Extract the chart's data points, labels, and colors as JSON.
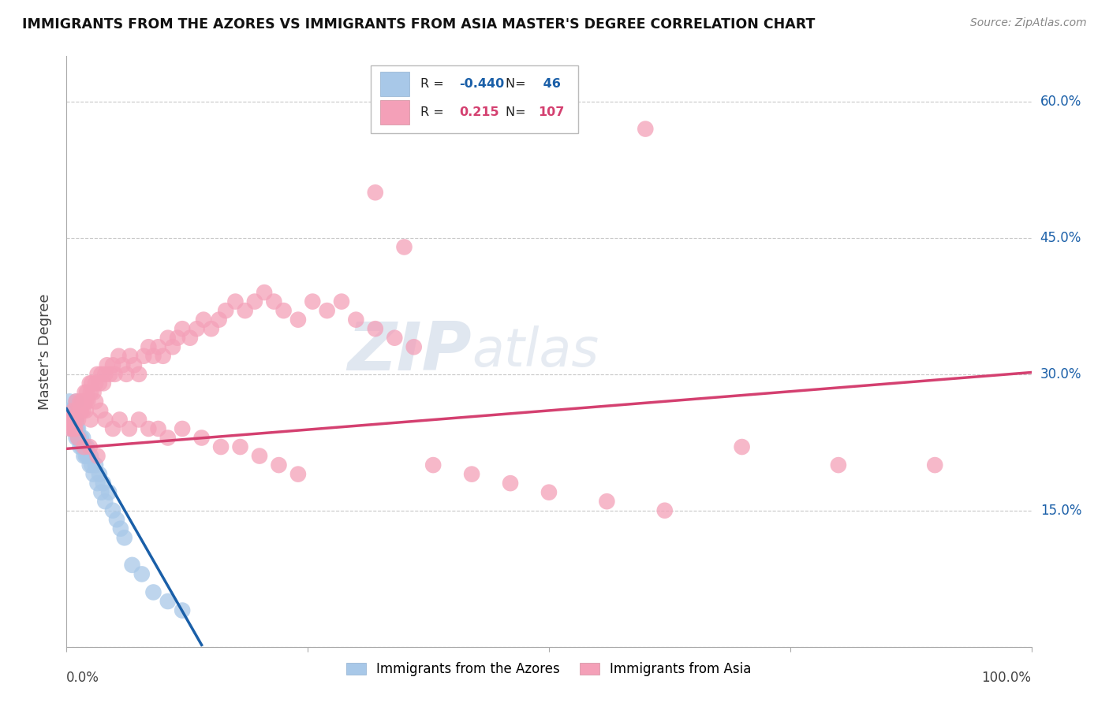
{
  "title": "IMMIGRANTS FROM THE AZORES VS IMMIGRANTS FROM ASIA MASTER'S DEGREE CORRELATION CHART",
  "source": "Source: ZipAtlas.com",
  "ylabel": "Master's Degree",
  "yticks": [
    0.0,
    0.15,
    0.3,
    0.45,
    0.6
  ],
  "ytick_labels": [
    "",
    "15.0%",
    "30.0%",
    "45.0%",
    "60.0%"
  ],
  "xlim": [
    0.0,
    1.0
  ],
  "ylim": [
    0.0,
    0.65
  ],
  "legend_label1": "Immigrants from the Azores",
  "legend_label2": "Immigrants from Asia",
  "R1": -0.44,
  "N1": 46,
  "R2": 0.215,
  "N2": 107,
  "color_blue": "#a8c8e8",
  "color_pink": "#f4a0b8",
  "line_color_blue": "#1a5fa8",
  "line_color_pink": "#d44070",
  "background_color": "#ffffff",
  "grid_color": "#c8c8c8",
  "watermark_zip": "ZIP",
  "watermark_atlas": "atlas",
  "azores_x": [
    0.002,
    0.003,
    0.003,
    0.004,
    0.005,
    0.005,
    0.006,
    0.007,
    0.008,
    0.009,
    0.01,
    0.01,
    0.011,
    0.012,
    0.012,
    0.013,
    0.014,
    0.015,
    0.016,
    0.017,
    0.018,
    0.019,
    0.02,
    0.021,
    0.022,
    0.024,
    0.025,
    0.026,
    0.028,
    0.03,
    0.032,
    0.034,
    0.036,
    0.038,
    0.04,
    0.044,
    0.048,
    0.052,
    0.056,
    0.06,
    0.068,
    0.078,
    0.09,
    0.105,
    0.12,
    0.01
  ],
  "azores_y": [
    0.26,
    0.25,
    0.27,
    0.25,
    0.26,
    0.24,
    0.25,
    0.24,
    0.25,
    0.24,
    0.25,
    0.23,
    0.24,
    0.23,
    0.24,
    0.23,
    0.22,
    0.23,
    0.22,
    0.23,
    0.21,
    0.22,
    0.21,
    0.22,
    0.21,
    0.2,
    0.21,
    0.2,
    0.19,
    0.2,
    0.18,
    0.19,
    0.17,
    0.18,
    0.16,
    0.17,
    0.15,
    0.14,
    0.13,
    0.12,
    0.09,
    0.08,
    0.06,
    0.05,
    0.04,
    0.27
  ],
  "asia_x": [
    0.004,
    0.005,
    0.006,
    0.007,
    0.008,
    0.009,
    0.01,
    0.011,
    0.012,
    0.013,
    0.014,
    0.015,
    0.016,
    0.017,
    0.018,
    0.019,
    0.02,
    0.021,
    0.022,
    0.024,
    0.025,
    0.026,
    0.028,
    0.03,
    0.032,
    0.034,
    0.036,
    0.038,
    0.04,
    0.042,
    0.045,
    0.048,
    0.05,
    0.054,
    0.058,
    0.062,
    0.066,
    0.07,
    0.075,
    0.08,
    0.085,
    0.09,
    0.095,
    0.1,
    0.105,
    0.11,
    0.115,
    0.12,
    0.128,
    0.135,
    0.142,
    0.15,
    0.158,
    0.165,
    0.175,
    0.185,
    0.195,
    0.205,
    0.215,
    0.225,
    0.24,
    0.255,
    0.27,
    0.285,
    0.3,
    0.32,
    0.34,
    0.36,
    0.01,
    0.015,
    0.02,
    0.025,
    0.03,
    0.035,
    0.04,
    0.048,
    0.055,
    0.065,
    0.075,
    0.085,
    0.095,
    0.105,
    0.12,
    0.14,
    0.16,
    0.18,
    0.2,
    0.22,
    0.24,
    0.005,
    0.008,
    0.012,
    0.018,
    0.024,
    0.032,
    0.38,
    0.42,
    0.46,
    0.5,
    0.56,
    0.62,
    0.7,
    0.8,
    0.9,
    0.35,
    0.32,
    0.6
  ],
  "asia_y": [
    0.24,
    0.25,
    0.24,
    0.26,
    0.25,
    0.24,
    0.25,
    0.26,
    0.25,
    0.26,
    0.27,
    0.26,
    0.27,
    0.26,
    0.27,
    0.28,
    0.27,
    0.28,
    0.27,
    0.29,
    0.28,
    0.29,
    0.28,
    0.29,
    0.3,
    0.29,
    0.3,
    0.29,
    0.3,
    0.31,
    0.3,
    0.31,
    0.3,
    0.32,
    0.31,
    0.3,
    0.32,
    0.31,
    0.3,
    0.32,
    0.33,
    0.32,
    0.33,
    0.32,
    0.34,
    0.33,
    0.34,
    0.35,
    0.34,
    0.35,
    0.36,
    0.35,
    0.36,
    0.37,
    0.38,
    0.37,
    0.38,
    0.39,
    0.38,
    0.37,
    0.36,
    0.38,
    0.37,
    0.38,
    0.36,
    0.35,
    0.34,
    0.33,
    0.27,
    0.26,
    0.26,
    0.25,
    0.27,
    0.26,
    0.25,
    0.24,
    0.25,
    0.24,
    0.25,
    0.24,
    0.24,
    0.23,
    0.24,
    0.23,
    0.22,
    0.22,
    0.21,
    0.2,
    0.19,
    0.25,
    0.24,
    0.23,
    0.22,
    0.22,
    0.21,
    0.2,
    0.19,
    0.18,
    0.17,
    0.16,
    0.15,
    0.22,
    0.2,
    0.2,
    0.44,
    0.5,
    0.57
  ],
  "asia_line_start_x": 0.0,
  "asia_line_start_y": 0.218,
  "asia_line_end_x": 1.0,
  "asia_line_end_y": 0.302,
  "azores_line_start_x": 0.0,
  "azores_line_start_y": 0.262,
  "azores_line_end_x": 0.14,
  "azores_line_end_y": 0.002
}
